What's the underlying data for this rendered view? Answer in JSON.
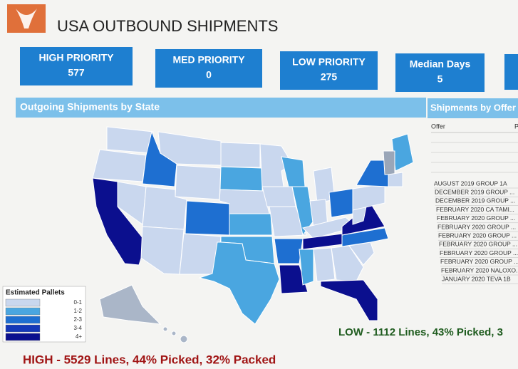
{
  "header": {
    "title": "USA OUTBOUND SHIPMENTS"
  },
  "kpis": [
    {
      "label": "HIGH PRIORITY",
      "value": 577
    },
    {
      "label": "MED PRIORITY",
      "value": 0
    },
    {
      "label": "LOW PRIORITY",
      "value": 275
    },
    {
      "label": "Median Days",
      "value": 5
    }
  ],
  "map_panel": {
    "title": "Outgoing Shipments by State"
  },
  "legend": {
    "title": "Estimated Pallets",
    "items": [
      {
        "label": "0-1",
        "color": "#c9d7ee"
      },
      {
        "label": "1-2",
        "color": "#4aa6e0"
      },
      {
        "label": "2-3",
        "color": "#1e6fd1"
      },
      {
        "label": "3-4",
        "color": "#1438b8"
      },
      {
        "label": "4+",
        "color": "#0b0f8e"
      }
    ]
  },
  "offers_panel": {
    "title": "Shipments by Offer",
    "columns": [
      "Offer",
      "P"
    ],
    "items": [
      "AUGUST 2019 GROUP 1A",
      "DECEMBER 2019 GROUP ...",
      "DECEMBER 2019 GROUP ...",
      "FEBRUARY 2020 CA TAMI...",
      "FEBRUARY 2020 GROUP ...",
      "FEBRUARY 2020 GROUP ...",
      "FEBRUARY 2020 GROUP ...",
      "FEBRUARY 2020 GROUP ...",
      "FEBRUARY 2020 GROUP ...",
      "FEBRUARY 2020 GROUP ...",
      "FEBRUARY 2020 NALOXO...",
      "JANUARY 2020 TEVA 1B"
    ]
  },
  "footer": {
    "high": "HIGH - 5529 Lines, 44% Picked, 32% Packed",
    "low": "LOW - 1112 Lines, 43% Picked, 3"
  }
}
